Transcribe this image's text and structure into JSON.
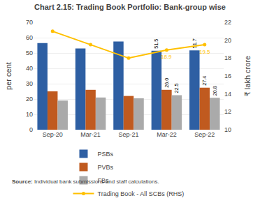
{
  "chart_data": {
    "type": "bar",
    "title": "Chart 2.15: Trading Book Portfolio: Bank-group wise",
    "categories": [
      "Sep-20",
      "Mar-21",
      "Sep-21",
      "Mar-22",
      "Sep-22"
    ],
    "series": [
      {
        "name": "PSBs",
        "type": "bar",
        "color": "#2E5FA3",
        "values": [
          56.5,
          53.0,
          57.5,
          51.5,
          51.7
        ],
        "value_labels": [
          null,
          null,
          null,
          "51.5",
          "51.7"
        ]
      },
      {
        "name": "PVBs",
        "type": "bar",
        "color": "#C05A1F",
        "values": [
          25.0,
          26.0,
          22.0,
          26.0,
          27.4
        ],
        "value_labels": [
          null,
          null,
          null,
          "26.0",
          "27.4"
        ]
      },
      {
        "name": "FBs",
        "type": "bar",
        "color": "#AAAAAA",
        "values": [
          19.0,
          21.0,
          20.5,
          22.5,
          20.8
        ],
        "value_labels": [
          null,
          null,
          null,
          "22.5",
          "20.8"
        ]
      },
      {
        "name": "Trading Book - All SCBs (RHS)",
        "type": "line",
        "axis": "y2",
        "color": "#FFC000",
        "marker": "circle",
        "values": [
          21.0,
          19.5,
          18.0,
          18.9,
          19.5
        ],
        "value_labels": [
          null,
          null,
          null,
          "18.9",
          "19.5"
        ]
      }
    ],
    "ylabel": "per cent",
    "y2label": "₹ lakh crore",
    "ylim": [
      0,
      70
    ],
    "yticks": [
      0,
      10,
      20,
      30,
      40,
      50,
      60,
      70
    ],
    "y2lim": [
      10,
      22
    ],
    "y2ticks": [
      10,
      12,
      14,
      16,
      18,
      20,
      22
    ],
    "grid": true,
    "legend": "bottom",
    "source": "Source: Individual bank submissions and staff calculations."
  }
}
